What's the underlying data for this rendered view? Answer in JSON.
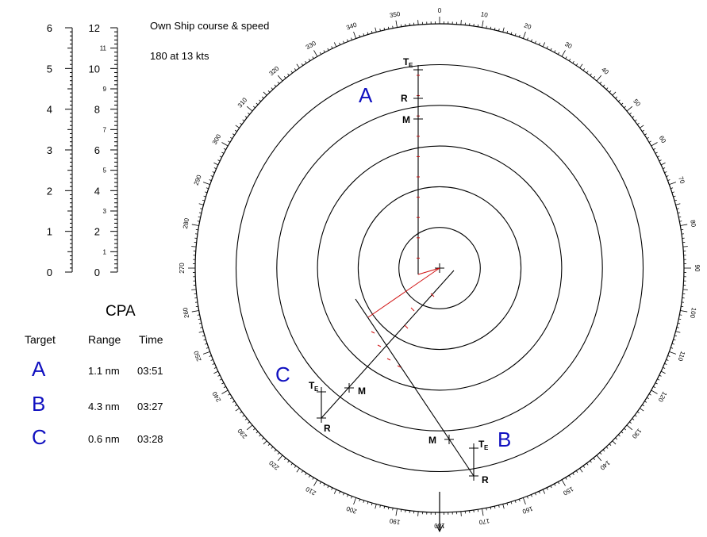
{
  "own_ship": {
    "label": "Own Ship course & speed",
    "value": "180  at 13 kts",
    "course_deg": 180
  },
  "scale": {
    "left_ticks": [
      "0",
      "1",
      "2",
      "3",
      "4",
      "5",
      "6"
    ],
    "right_major": [
      "0",
      "2",
      "4",
      "6",
      "8",
      "10",
      "12"
    ],
    "right_minor": [
      "1",
      "3",
      "5",
      "7",
      "9",
      "11"
    ]
  },
  "bearing_labels": [
    "0",
    "10",
    "20",
    "30",
    "40",
    "50",
    "60",
    "70",
    "80",
    "90",
    "100",
    "110",
    "120",
    "130",
    "140",
    "150",
    "160",
    "170",
    "180",
    "190",
    "200",
    "210",
    "220",
    "230",
    "240",
    "250",
    "260",
    "270",
    "280",
    "290",
    "300",
    "310",
    "320",
    "330",
    "340",
    "350"
  ],
  "markers": {
    "te": "T",
    "te_sub": "E",
    "r": "R",
    "m": "M"
  },
  "plot_targets": [
    {
      "name": "A",
      "color": "#1010c0"
    },
    {
      "name": "B",
      "color": "#1010c0"
    },
    {
      "name": "C",
      "color": "#1010c0"
    }
  ],
  "cpa": {
    "title": "CPA",
    "headers": {
      "target": "Target",
      "range": "Range",
      "time": "Time"
    },
    "rows": [
      {
        "target": "A",
        "range": "1.1 nm",
        "time": "03:51"
      },
      {
        "target": "B",
        "range": "4.3 nm",
        "time": "03:27"
      },
      {
        "target": "C",
        "range": "0.6 nm",
        "time": "03:28"
      }
    ]
  },
  "colors": {
    "rings": "#000000",
    "own_vector": "#d01010",
    "target_labels": "#1010c0"
  }
}
